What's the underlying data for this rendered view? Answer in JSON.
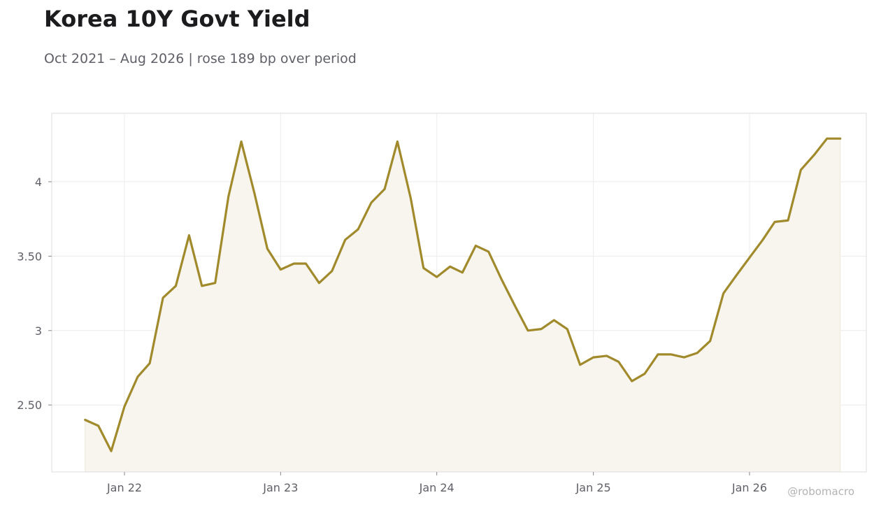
{
  "title": "Korea 10Y Govt Yield",
  "subtitle": "Oct 2021 – Aug 2026 | rose 189 bp over period",
  "credit": "@robomacro",
  "colors": {
    "line": "#a08a2c",
    "fill": "#f8f5ee",
    "grid": "#ececec",
    "axis": "#dddddd",
    "text": "#5f6068"
  },
  "chart_data": {
    "type": "area",
    "title": "Korea 10Y Govt Yield",
    "subtitle": "Oct 2021 – Aug 2026 | rose 189 bp over period",
    "xlabel": "",
    "ylabel": "",
    "grid": true,
    "legend": "none",
    "xlim": [
      "2021-07-15",
      "2026-10-01"
    ],
    "ylim": [
      2.05,
      4.46
    ],
    "x_ticks": [
      {
        "date": "2022-01-01",
        "label": "Jan 22"
      },
      {
        "date": "2023-01-01",
        "label": "Jan 23"
      },
      {
        "date": "2024-01-01",
        "label": "Jan 24"
      },
      {
        "date": "2025-01-01",
        "label": "Jan 25"
      },
      {
        "date": "2026-01-01",
        "label": "Jan 26"
      }
    ],
    "y_ticks": [
      {
        "value": 2.5,
        "label": "2.50"
      },
      {
        "value": 3,
        "label": "3"
      },
      {
        "value": 3.5,
        "label": "3.50"
      },
      {
        "value": 4,
        "label": "4"
      }
    ],
    "series": [
      {
        "x": [
          "2021-10-01",
          "2021-11-01",
          "2021-12-01",
          "2022-01-01",
          "2022-02-01",
          "2022-03-01",
          "2022-04-01",
          "2022-05-01",
          "2022-06-01",
          "2022-07-01",
          "2022-08-01",
          "2022-09-01",
          "2022-10-01",
          "2022-11-01",
          "2022-12-01",
          "2023-01-01",
          "2023-02-01",
          "2023-03-01",
          "2023-04-01",
          "2023-05-01",
          "2023-06-01",
          "2023-07-01",
          "2023-08-01",
          "2023-09-01",
          "2023-10-01",
          "2023-11-01",
          "2023-12-01",
          "2024-01-01",
          "2024-02-01",
          "2024-03-01",
          "2024-04-01",
          "2024-05-01",
          "2024-06-01",
          "2024-07-01",
          "2024-08-01",
          "2024-09-01",
          "2024-10-01",
          "2024-11-01",
          "2024-12-01",
          "2025-01-01",
          "2025-02-01",
          "2025-03-01",
          "2025-04-01",
          "2025-05-01",
          "2025-06-01",
          "2025-07-01",
          "2025-08-01",
          "2025-09-01",
          "2025-10-01",
          "2025-11-01",
          "2025-12-01",
          "2026-01-01",
          "2026-02-01",
          "2026-03-01",
          "2026-04-01",
          "2026-05-01",
          "2026-06-01",
          "2026-07-01",
          "2026-08-01"
        ],
        "values": [
          2.4,
          2.36,
          2.19,
          2.49,
          2.69,
          2.78,
          3.22,
          3.3,
          3.64,
          3.3,
          3.32,
          3.9,
          4.27,
          3.92,
          3.55,
          3.41,
          3.45,
          3.45,
          3.32,
          3.4,
          3.61,
          3.68,
          3.86,
          3.95,
          4.27,
          3.89,
          3.42,
          3.36,
          3.43,
          3.39,
          3.57,
          3.53,
          3.34,
          3.17,
          3.0,
          3.01,
          3.07,
          3.01,
          2.77,
          2.82,
          2.83,
          2.79,
          2.66,
          2.71,
          2.84,
          2.84,
          2.82,
          2.85,
          2.93,
          3.25,
          3.37,
          3.49,
          3.61,
          3.73,
          3.74,
          4.08,
          4.18,
          4.29,
          4.29
        ]
      }
    ]
  }
}
